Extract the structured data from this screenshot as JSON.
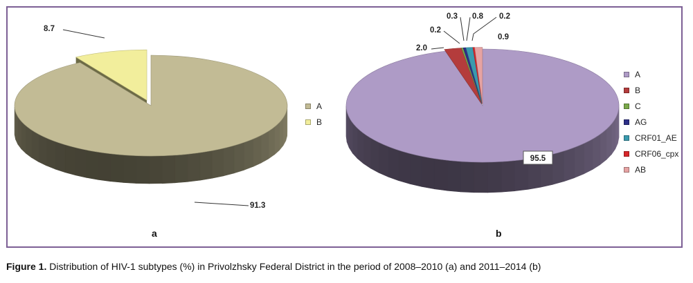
{
  "chart_data": [
    {
      "type": "pie",
      "panel_label": "a",
      "categories": [
        "A",
        "B"
      ],
      "values": [
        91.3,
        8.7
      ],
      "colors": [
        "#c2bb95",
        "#f2ee9c"
      ],
      "data_labels": [
        "91.3",
        "8.7"
      ],
      "exploded": "B",
      "legend": [
        "A",
        "B"
      ],
      "legend_position": "right"
    },
    {
      "type": "pie",
      "panel_label": "b",
      "categories": [
        "A",
        "B",
        "C",
        "AG",
        "CRF01_AE",
        "CRF06_cpx",
        "AB"
      ],
      "values": [
        95.5,
        2.0,
        0.2,
        0.3,
        0.8,
        0.2,
        0.9
      ],
      "colors": [
        "#ae9bc6",
        "#b43c3c",
        "#7aa84a",
        "#2d2f88",
        "#3a9aae",
        "#d8262a",
        "#e6a3a3"
      ],
      "data_labels": [
        "95.5",
        "2.0",
        "0.2",
        "0.3",
        "0.8",
        "0.2",
        "0.9"
      ],
      "legend": [
        "A",
        "B",
        "C",
        "AG",
        "CRF01_AE",
        "CRF06_cpx",
        "AB"
      ],
      "legend_position": "right"
    }
  ],
  "caption": {
    "label": "Figure 1.",
    "text": " Distribution of HIV-1 subtypes (%) in Privolzhsky Federal District in the period of 2008–2010 (a) and 2011–2014 (b)"
  }
}
